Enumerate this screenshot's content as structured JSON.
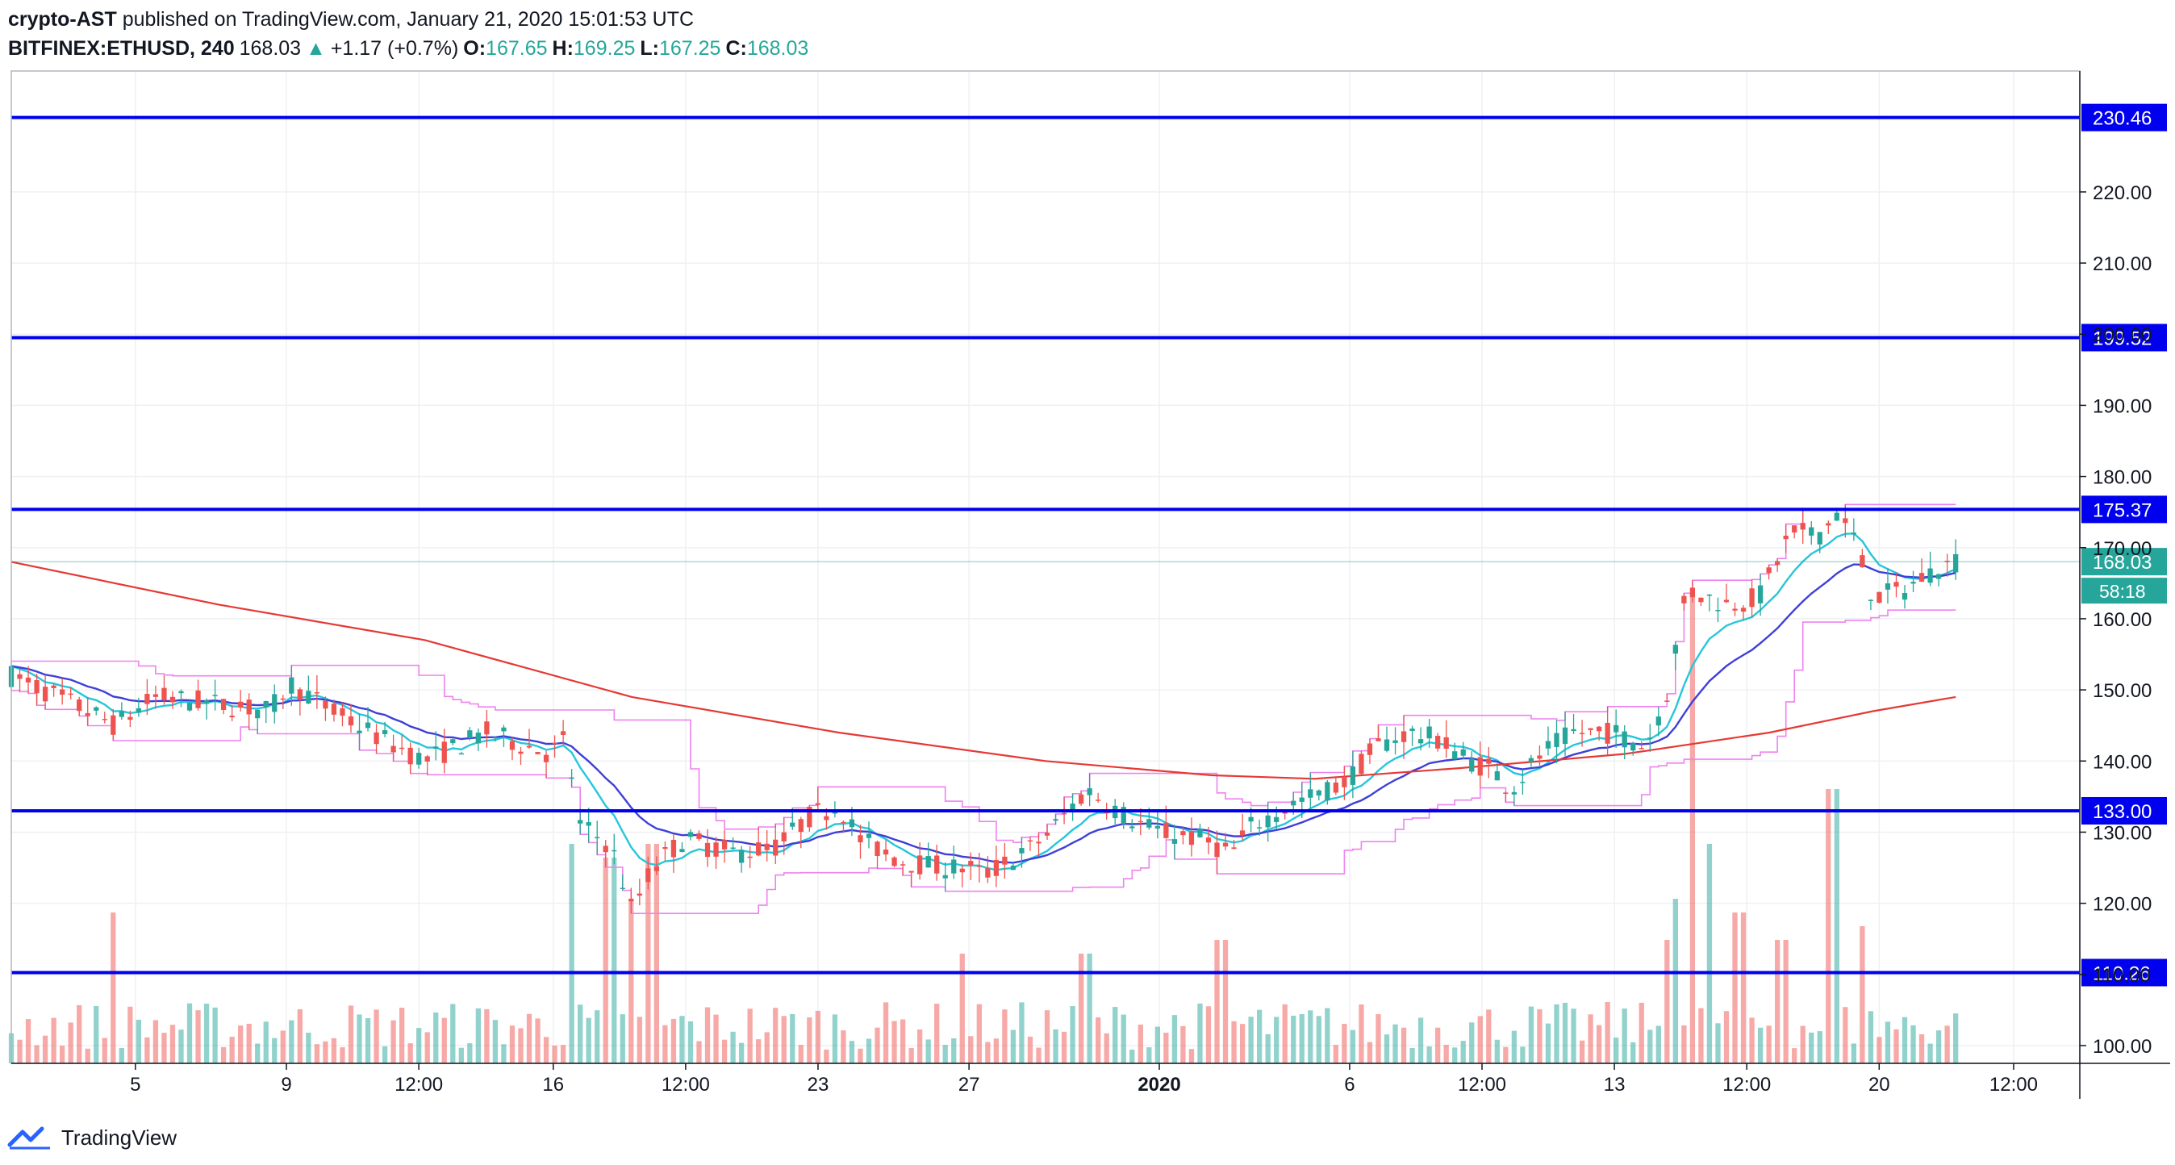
{
  "header": {
    "author": "crypto-AST",
    "published_text": "published on TradingView.com, January 21, 2020 15:01:53 UTC",
    "symbol": "BITFINEX:ETHUSD, 240",
    "last": "168.03",
    "change_arrow": "▲",
    "change": "+1.17 (+0.7%)",
    "o_label": "O:",
    "o_value": "167.65",
    "h_label": "H:",
    "h_value": "169.25",
    "l_label": "L:",
    "l_value": "167.25",
    "c_label": "C:",
    "c_value": "168.03"
  },
  "footer": {
    "brand": "TradingView",
    "logo_icon": "tradingview-logo-icon"
  },
  "chart_data": {
    "type": "candlestick",
    "title": "",
    "y_range": [
      97.5,
      237
    ],
    "y_ticks": [
      100,
      110,
      120,
      130,
      140,
      150,
      160,
      170,
      180,
      190,
      200,
      210,
      220
    ],
    "y_tick_labels": [
      "100.00",
      "110.00",
      "120.00",
      "130.00",
      "140.00",
      "150.00",
      "160.00",
      "170.00",
      "180.00",
      "190.00",
      "200.00",
      "210.00",
      "220.00"
    ],
    "x_ticks": [
      {
        "label": "5",
        "pos": 0.06,
        "bold": false
      },
      {
        "label": "9",
        "pos": 0.133,
        "bold": false
      },
      {
        "label": "12:00",
        "pos": 0.197,
        "bold": false
      },
      {
        "label": "16",
        "pos": 0.262,
        "bold": false
      },
      {
        "label": "12:00",
        "pos": 0.326,
        "bold": false
      },
      {
        "label": "23",
        "pos": 0.39,
        "bold": false
      },
      {
        "label": "27",
        "pos": 0.463,
        "bold": false
      },
      {
        "label": "2020",
        "pos": 0.555,
        "bold": true
      },
      {
        "label": "6",
        "pos": 0.647,
        "bold": false
      },
      {
        "label": "12:00",
        "pos": 0.711,
        "bold": false
      },
      {
        "label": "13",
        "pos": 0.775,
        "bold": false
      },
      {
        "label": "12:00",
        "pos": 0.839,
        "bold": false
      },
      {
        "label": "20",
        "pos": 0.903,
        "bold": false
      },
      {
        "label": "12:00",
        "pos": 0.968,
        "bold": false
      }
    ],
    "levels": [
      {
        "value": 230.46,
        "label": "230.46"
      },
      {
        "value": 199.52,
        "label": "199.52"
      },
      {
        "value": 175.37,
        "label": "175.37"
      },
      {
        "value": 133.0,
        "label": "133.00"
      },
      {
        "value": 110.26,
        "label": "110.26"
      }
    ],
    "last_price": {
      "value": 168.03,
      "label": "168.03",
      "countdown": "58:18"
    },
    "colors": {
      "up": "#26a69a",
      "down": "#ef5350",
      "level": "#0000ee",
      "ema_fast": "#26c6da",
      "ema_slow": "#3f3fd8",
      "ma_long": "#e53935",
      "channel": "#ee82ee"
    },
    "price_path": [
      [
        0.0,
        152
      ],
      [
        0.03,
        148
      ],
      [
        0.05,
        145
      ],
      [
        0.07,
        149
      ],
      [
        0.1,
        148
      ],
      [
        0.125,
        147
      ],
      [
        0.135,
        151
      ],
      [
        0.155,
        147
      ],
      [
        0.18,
        143
      ],
      [
        0.2,
        140
      ],
      [
        0.23,
        144
      ],
      [
        0.26,
        141
      ],
      [
        0.268,
        143
      ],
      [
        0.275,
        131
      ],
      [
        0.29,
        128
      ],
      [
        0.3,
        119
      ],
      [
        0.31,
        125
      ],
      [
        0.325,
        129
      ],
      [
        0.35,
        127
      ],
      [
        0.37,
        128
      ],
      [
        0.385,
        132
      ],
      [
        0.4,
        134
      ],
      [
        0.41,
        129
      ],
      [
        0.43,
        126
      ],
      [
        0.45,
        125
      ],
      [
        0.462,
        125
      ],
      [
        0.47,
        124
      ],
      [
        0.49,
        127
      ],
      [
        0.505,
        131
      ],
      [
        0.52,
        136
      ],
      [
        0.54,
        132
      ],
      [
        0.555,
        130
      ],
      [
        0.575,
        129
      ],
      [
        0.59,
        127
      ],
      [
        0.6,
        131
      ],
      [
        0.62,
        134
      ],
      [
        0.645,
        137
      ],
      [
        0.66,
        142
      ],
      [
        0.675,
        144
      ],
      [
        0.69,
        143
      ],
      [
        0.705,
        140
      ],
      [
        0.715,
        139
      ],
      [
        0.725,
        136
      ],
      [
        0.74,
        141
      ],
      [
        0.755,
        144
      ],
      [
        0.775,
        144
      ],
      [
        0.79,
        142
      ],
      [
        0.8,
        149
      ],
      [
        0.81,
        164
      ],
      [
        0.83,
        162
      ],
      [
        0.845,
        163
      ],
      [
        0.86,
        172
      ],
      [
        0.875,
        172
      ],
      [
        0.882,
        175
      ],
      [
        0.89,
        172
      ],
      [
        0.9,
        163
      ],
      [
        0.915,
        164
      ],
      [
        0.93,
        167
      ],
      [
        0.94,
        168
      ]
    ],
    "volume_spikes": [
      [
        0.05,
        11
      ],
      [
        0.272,
        16
      ],
      [
        0.29,
        15
      ],
      [
        0.3,
        12
      ],
      [
        0.31,
        16
      ],
      [
        0.46,
        8
      ],
      [
        0.52,
        8
      ],
      [
        0.585,
        9
      ],
      [
        0.8,
        9
      ],
      [
        0.805,
        12
      ],
      [
        0.812,
        34
      ],
      [
        0.82,
        16
      ],
      [
        0.835,
        11
      ],
      [
        0.855,
        9
      ],
      [
        0.88,
        20
      ],
      [
        0.895,
        10
      ]
    ]
  }
}
